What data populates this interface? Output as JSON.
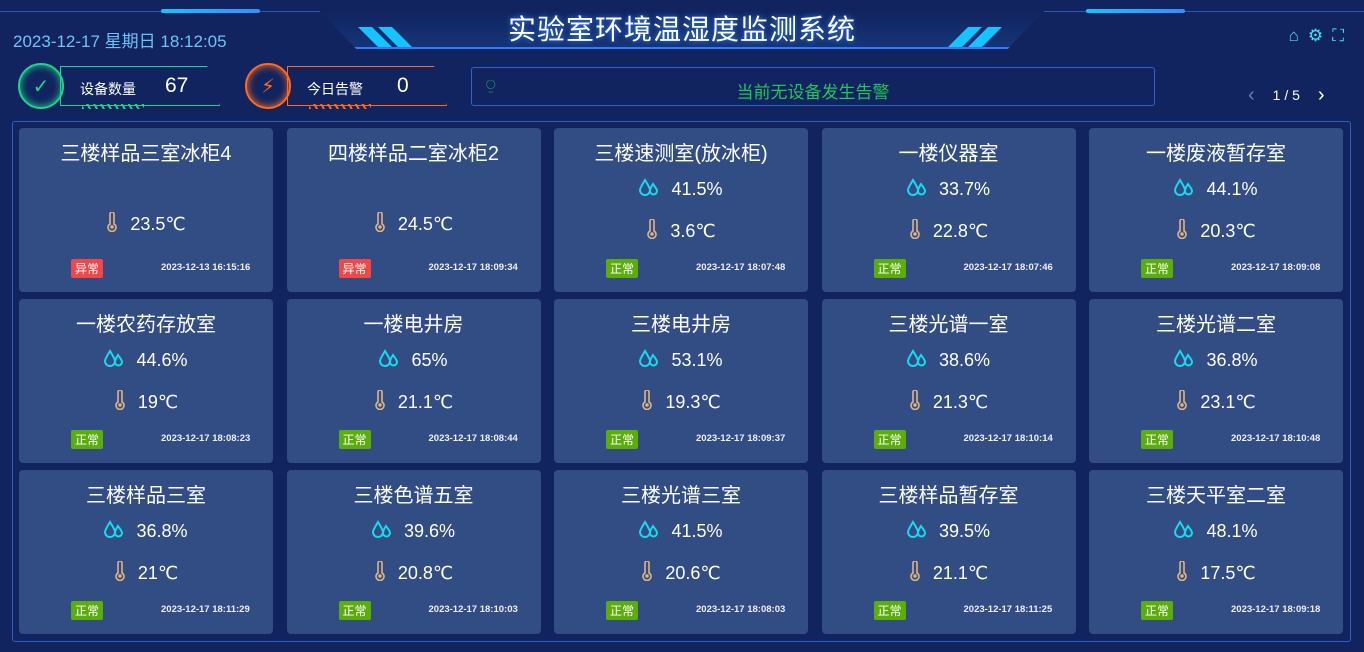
{
  "header": {
    "title": "实验室环境温湿度监测系统",
    "datetime": "2023-12-17 星期日 18:12:05"
  },
  "tools": [
    {
      "name": "home-icon",
      "glyph": "⌂"
    },
    {
      "name": "gear-icon",
      "glyph": "⚙"
    },
    {
      "name": "fullscreen-icon",
      "glyph": "⛶"
    }
  ],
  "stats": {
    "devices": {
      "label": "设备数量",
      "value": "67",
      "color": "#1fd38a"
    },
    "alarms": {
      "label": "今日告警",
      "value": "0",
      "color": "#ff6a1f"
    }
  },
  "alarm_bar": {
    "text": "当前无设备发生告警"
  },
  "pager": {
    "text": "1 / 5",
    "prev": "‹",
    "next": "›"
  },
  "status_colors": {
    "正常": "#5bad0c",
    "异常": "#f04848"
  },
  "devices": [
    {
      "name": "三楼样品三室冰柜4",
      "humidity": null,
      "temperature": "23.5℃",
      "status": "异常",
      "time": "2023-12-13 16:15:16"
    },
    {
      "name": "四楼样品二室冰柜2",
      "humidity": null,
      "temperature": "24.5℃",
      "status": "异常",
      "time": "2023-12-17 18:09:34"
    },
    {
      "name": "三楼速测室(放冰柜)",
      "humidity": "41.5%",
      "temperature": "3.6℃",
      "status": "正常",
      "time": "2023-12-17 18:07:48"
    },
    {
      "name": "一楼仪器室",
      "humidity": "33.7%",
      "temperature": "22.8℃",
      "status": "正常",
      "time": "2023-12-17 18:07:46"
    },
    {
      "name": "一楼废液暂存室",
      "humidity": "44.1%",
      "temperature": "20.3℃",
      "status": "正常",
      "time": "2023-12-17 18:09:08"
    },
    {
      "name": "一楼农药存放室",
      "humidity": "44.6%",
      "temperature": "19℃",
      "status": "正常",
      "time": "2023-12-17 18:08:23"
    },
    {
      "name": "一楼电井房",
      "humidity": "65%",
      "temperature": "21.1℃",
      "status": "正常",
      "time": "2023-12-17 18:08:44"
    },
    {
      "name": "三楼电井房",
      "humidity": "53.1%",
      "temperature": "19.3℃",
      "status": "正常",
      "time": "2023-12-17 18:09:37"
    },
    {
      "name": "三楼光谱一室",
      "humidity": "38.6%",
      "temperature": "21.3℃",
      "status": "正常",
      "time": "2023-12-17 18:10:14"
    },
    {
      "name": "三楼光谱二室",
      "humidity": "36.8%",
      "temperature": "23.1℃",
      "status": "正常",
      "time": "2023-12-17 18:10:48"
    },
    {
      "name": "三楼样品三室",
      "humidity": "36.8%",
      "temperature": "21℃",
      "status": "正常",
      "time": "2023-12-17 18:11:29"
    },
    {
      "name": "三楼色谱五室",
      "humidity": "39.6%",
      "temperature": "20.8℃",
      "status": "正常",
      "time": "2023-12-17 18:10:03"
    },
    {
      "name": "三楼光谱三室",
      "humidity": "41.5%",
      "temperature": "20.6℃",
      "status": "正常",
      "time": "2023-12-17 18:08:03"
    },
    {
      "name": "三楼样品暂存室",
      "humidity": "39.5%",
      "temperature": "21.1℃",
      "status": "正常",
      "time": "2023-12-17 18:11:25"
    },
    {
      "name": "三楼天平室二室",
      "humidity": "48.1%",
      "temperature": "17.5℃",
      "status": "正常",
      "time": "2023-12-17 18:09:18"
    }
  ]
}
